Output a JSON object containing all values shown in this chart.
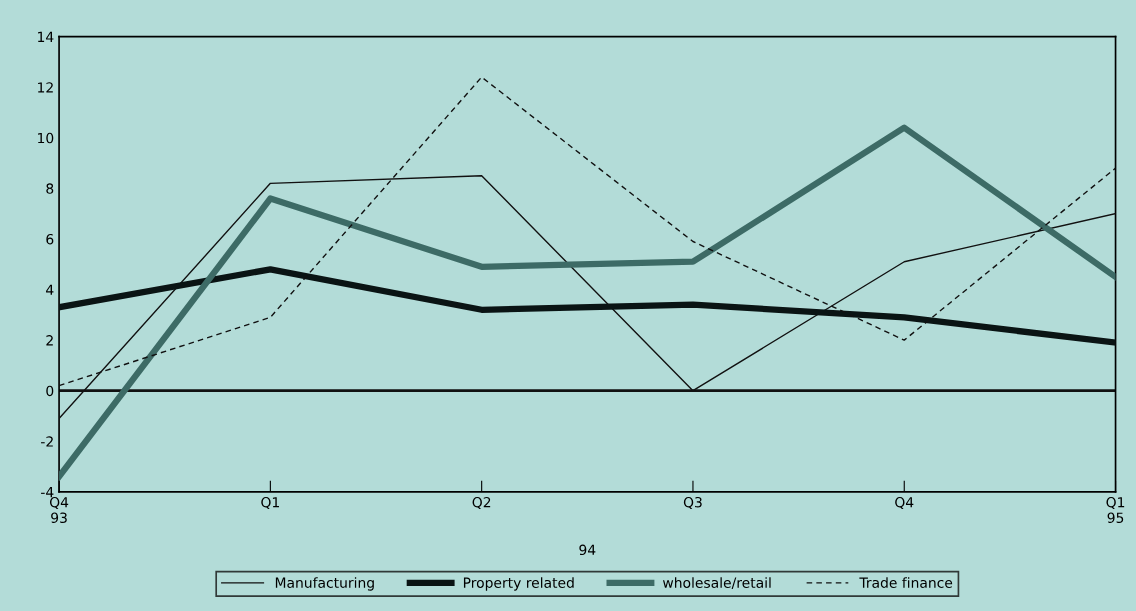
{
  "chart_data": {
    "type": "line",
    "categories": [
      "Q4\n93",
      "Q1",
      "Q2",
      "Q3",
      "Q4",
      "Q1\n95"
    ],
    "series": [
      {
        "name": "Manufacturing",
        "color": "#111111",
        "line_style": "solid",
        "values": [
          -1.1,
          8.2,
          8.5,
          0,
          5.1,
          7.0
        ]
      },
      {
        "name": "Property related",
        "color": "#0a1414",
        "line_style": "solid",
        "values": [
          3.3,
          4.8,
          3.2,
          3.4,
          2.9,
          1.9
        ]
      },
      {
        "name": "wholesale/retail",
        "color": "#3d6b66",
        "line_style": "solid",
        "values": [
          -3.4,
          7.6,
          4.9,
          5.1,
          10.4,
          4.5
        ]
      },
      {
        "name": "Trade finance",
        "color": "#111111",
        "line_style": "dashed",
        "values": [
          0.2,
          2.9,
          12.4,
          5.9,
          2.0,
          8.8
        ]
      }
    ],
    "ylim": [
      -4,
      14
    ],
    "yticks": [
      -4,
      -2,
      0,
      2,
      4,
      6,
      8,
      10,
      12,
      14
    ],
    "ref_lines": [
      {
        "axis": "y",
        "value": 0,
        "color": "#111111"
      }
    ],
    "annotations": [
      "94"
    ],
    "grid": false,
    "legend": "bottom",
    "marker": "none"
  }
}
